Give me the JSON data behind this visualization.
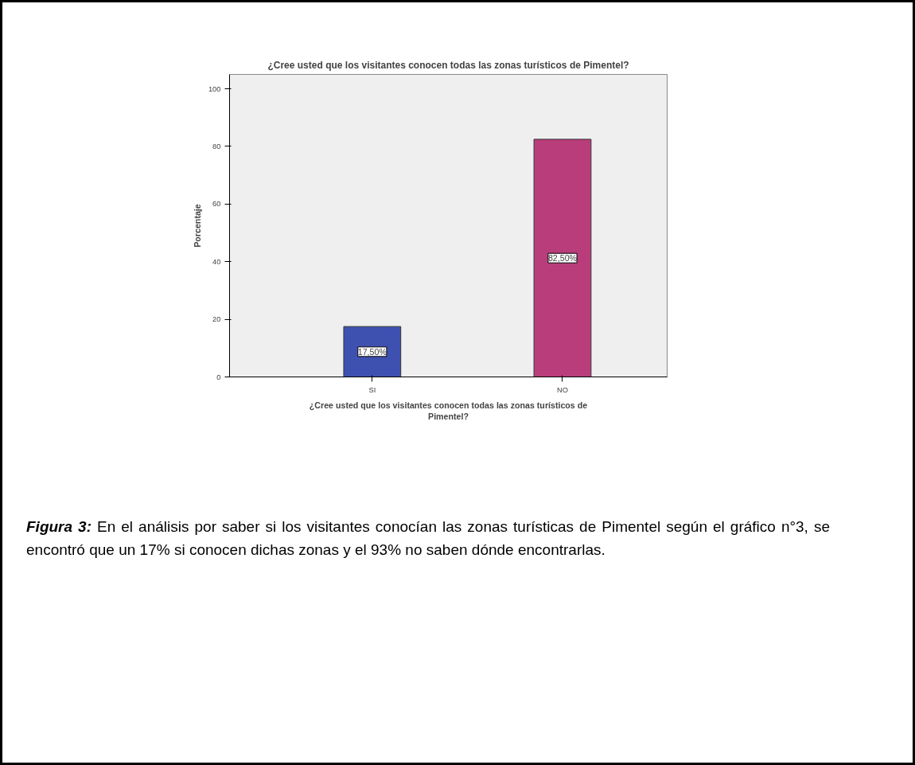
{
  "chart_data": {
    "type": "bar",
    "title": "¿Cree usted que los visitantes conocen todas las zonas turísticos de Pimentel?",
    "xlabel": "¿Cree usted que los visitantes conocen todas las zonas turísticos de Pimentel?",
    "ylabel": "Porcentaje",
    "categories": [
      "SI",
      "NO"
    ],
    "values": [
      17.5,
      82.5
    ],
    "colors": [
      "#3f51b0",
      "#b93d7b"
    ],
    "value_labels": [
      "17,50%",
      "82,50%"
    ],
    "ylim": [
      0,
      105
    ],
    "yticks": [
      0,
      20,
      40,
      60,
      80,
      100
    ],
    "grid": false,
    "annotations": [
      "Figura 3:",
      "En el análisis por saber si los visitantes conocían las zonas turísticas de Pimentel según el gráfico n°3, se encontró que un 17% si conocen dichas zonas y el 93% no saben dónde encontrarlas."
    ]
  }
}
